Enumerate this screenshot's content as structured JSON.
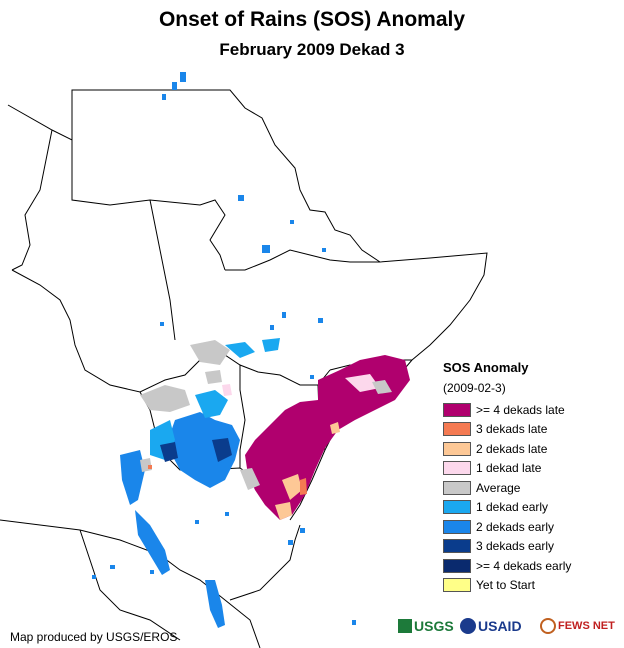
{
  "title": "Onset of Rains (SOS) Anomaly",
  "subtitle": "February 2009 Dekad 3",
  "legend": {
    "title": "SOS Anomaly",
    "date": "(2009-02-3)",
    "items": [
      {
        "label": ">= 4 dekads late",
        "color": "#b0006e"
      },
      {
        "label": "3 dekads late",
        "color": "#f47a52"
      },
      {
        "label": "2 dekads late",
        "color": "#fdc896"
      },
      {
        "label": "1 dekad late",
        "color": "#fcd8ec"
      },
      {
        "label": "Average",
        "color": "#c8c8c8"
      },
      {
        "label": "1 dekad early",
        "color": "#1aa8f0"
      },
      {
        "label": "2 dekads early",
        "color": "#1a86ea"
      },
      {
        "label": "3 dekads early",
        "color": "#0a3c8c"
      },
      {
        "label": ">= 4 dekads early",
        "color": "#0a2a6e"
      },
      {
        "label": "Yet to Start",
        "color": "#ffff88"
      }
    ]
  },
  "credit": "Map produced by USGS/EROS",
  "logos": {
    "usgs": "USGS",
    "usaid": "USAID",
    "fews": "FEWS NET"
  }
}
